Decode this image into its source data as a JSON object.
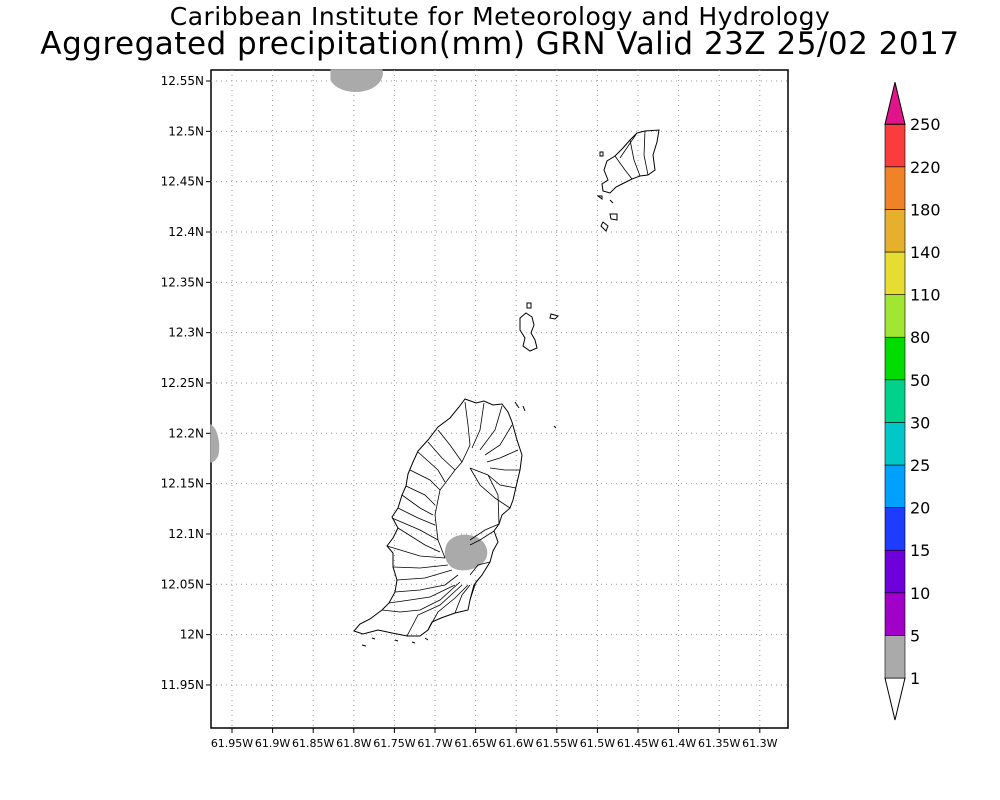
{
  "header": {
    "institution": "Caribbean Institute for Meteorology and Hydrology",
    "product": "Aggregated precipitation(mm) GRN Valid 23Z 25/02 2017"
  },
  "map": {
    "lat_ticks": [
      "12.55N",
      "12.5N",
      "12.45N",
      "12.4N",
      "12.35N",
      "12.3N",
      "12.25N",
      "12.2N",
      "12.15N",
      "12.1N",
      "12.05N",
      "12N",
      "11.95N"
    ],
    "lon_ticks": [
      "61.95W",
      "61.9W",
      "61.85W",
      "61.8W",
      "61.75W",
      "61.7W",
      "61.65W",
      "61.6W",
      "61.55W",
      "61.5W",
      "61.45W",
      "61.4W",
      "61.35W",
      "61.3W"
    ],
    "precip_fill_color": "#aaaaaa"
  },
  "legend": {
    "levels": [
      "1",
      "5",
      "10",
      "15",
      "20",
      "25",
      "30",
      "50",
      "80",
      "110",
      "140",
      "180",
      "220",
      "250"
    ],
    "colors": [
      "#aaaaaa",
      "#a000c8",
      "#6e00dc",
      "#1e3cff",
      "#00a0ff",
      "#00c8c8",
      "#00d28c",
      "#00dc00",
      "#a0e632",
      "#e6dc32",
      "#e6af2d",
      "#f08228",
      "#fa3c3c",
      "#e1148c"
    ]
  }
}
